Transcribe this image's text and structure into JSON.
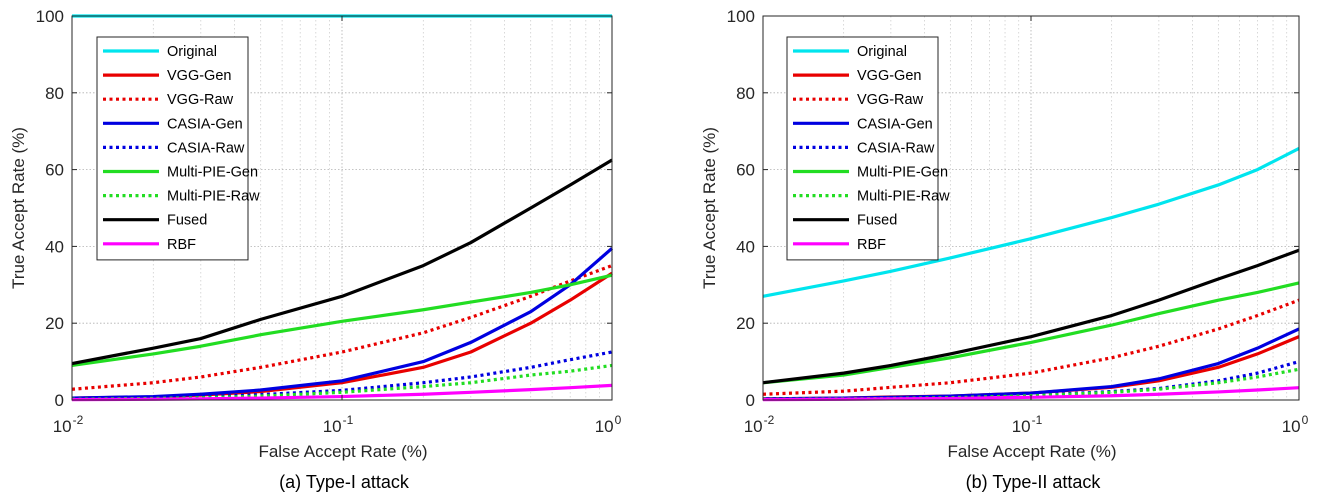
{
  "chart_data": [
    {
      "type": "line",
      "caption": "(a) Type-I attack",
      "xlabel": "False Accept Rate (%)",
      "ylabel": "True Accept Rate (%)",
      "xscale": "log",
      "xlim": [
        0.01,
        1
      ],
      "ylim": [
        0,
        100
      ],
      "xticks": [
        {
          "base": "10",
          "exp": "-2"
        },
        {
          "base": "10",
          "exp": "-1"
        },
        {
          "base": "10",
          "exp": "0"
        }
      ],
      "yticks": [
        "0",
        "20",
        "40",
        "60",
        "80",
        "100"
      ],
      "grid": true,
      "legend_position": "top-left",
      "x": [
        0.01,
        0.02,
        0.03,
        0.05,
        0.1,
        0.2,
        0.3,
        0.5,
        0.7,
        1.0
      ],
      "series": [
        {
          "name": "Original",
          "color": "#00e5ee",
          "dash": "solid",
          "values": [
            100,
            100,
            100,
            100,
            100,
            100,
            100,
            100,
            100,
            100
          ]
        },
        {
          "name": "VGG-Gen",
          "color": "#e80000",
          "dash": "solid",
          "values": [
            0.5,
            0.8,
            1.3,
            2.2,
            4.5,
            8.5,
            12.5,
            20,
            26,
            33
          ]
        },
        {
          "name": "VGG-Raw",
          "color": "#e80000",
          "dash": "dot",
          "values": [
            2.8,
            4.5,
            6,
            8.5,
            12.5,
            17.5,
            21.5,
            27,
            31,
            35
          ]
        },
        {
          "name": "CASIA-Gen",
          "color": "#0000e0",
          "dash": "solid",
          "values": [
            0.5,
            0.9,
            1.5,
            2.6,
            5,
            10,
            15,
            23,
            30,
            39.5
          ]
        },
        {
          "name": "CASIA-Raw",
          "color": "#0000e0",
          "dash": "dot",
          "values": [
            0.3,
            0.5,
            0.8,
            1.4,
            2.5,
            4.5,
            6,
            8.5,
            10.5,
            12.5
          ]
        },
        {
          "name": "Multi-PIE-Gen",
          "color": "#22dd22",
          "dash": "solid",
          "values": [
            9,
            12,
            14,
            17,
            20.5,
            23.5,
            25.5,
            28,
            30,
            32.5
          ]
        },
        {
          "name": "Multi-PIE-Raw",
          "color": "#22dd22",
          "dash": "dot",
          "values": [
            0.2,
            0.4,
            0.6,
            1,
            2,
            3.5,
            4.5,
            6.5,
            7.5,
            9
          ]
        },
        {
          "name": "Fused",
          "color": "#000000",
          "dash": "solid",
          "values": [
            9.5,
            13.5,
            16,
            21,
            27,
            35,
            41,
            50,
            56,
            62.5
          ]
        },
        {
          "name": "RBF",
          "color": "#ff00ff",
          "dash": "solid",
          "values": [
            0.1,
            0.2,
            0.3,
            0.5,
            0.9,
            1.5,
            2,
            2.7,
            3.2,
            3.8
          ]
        }
      ]
    },
    {
      "type": "line",
      "caption": "(b) Type-II attack",
      "xlabel": "False Accept Rate (%)",
      "ylabel": "True Accept Rate (%)",
      "xscale": "log",
      "xlim": [
        0.01,
        1
      ],
      "ylim": [
        0,
        100
      ],
      "xticks": [
        {
          "base": "10",
          "exp": "-2"
        },
        {
          "base": "10",
          "exp": "-1"
        },
        {
          "base": "10",
          "exp": "0"
        }
      ],
      "yticks": [
        "0",
        "20",
        "40",
        "60",
        "80",
        "100"
      ],
      "grid": true,
      "legend_position": "top-left",
      "x": [
        0.01,
        0.02,
        0.03,
        0.05,
        0.1,
        0.2,
        0.3,
        0.5,
        0.7,
        1.0
      ],
      "series": [
        {
          "name": "Original",
          "color": "#00e5ee",
          "dash": "solid",
          "values": [
            27,
            31,
            33.5,
            37,
            42,
            47.5,
            51,
            56,
            60,
            65.5
          ]
        },
        {
          "name": "VGG-Gen",
          "color": "#e80000",
          "dash": "solid",
          "values": [
            0.3,
            0.5,
            0.8,
            1,
            1.8,
            3.3,
            5,
            8.5,
            12,
            16.5
          ]
        },
        {
          "name": "VGG-Raw",
          "color": "#e80000",
          "dash": "dot",
          "values": [
            1.5,
            2.3,
            3.3,
            4.5,
            7,
            11,
            14,
            18.5,
            22,
            26
          ]
        },
        {
          "name": "CASIA-Gen",
          "color": "#0000e0",
          "dash": "solid",
          "values": [
            0.3,
            0.5,
            0.7,
            1,
            1.8,
            3.5,
            5.5,
            9.5,
            13.5,
            18.5
          ]
        },
        {
          "name": "CASIA-Raw",
          "color": "#0000e0",
          "dash": "dot",
          "values": [
            0.2,
            0.3,
            0.4,
            0.6,
            1.2,
            2.2,
            3,
            5,
            7,
            10
          ]
        },
        {
          "name": "Multi-PIE-Gen",
          "color": "#22dd22",
          "dash": "solid",
          "values": [
            4.5,
            6.5,
            8.5,
            11,
            15,
            19.5,
            22.5,
            26,
            28,
            30.5
          ]
        },
        {
          "name": "Multi-PIE-Raw",
          "color": "#22dd22",
          "dash": "dot",
          "values": [
            0.2,
            0.3,
            0.4,
            0.6,
            1.1,
            2,
            2.8,
            4.5,
            6,
            8
          ]
        },
        {
          "name": "Fused",
          "color": "#000000",
          "dash": "solid",
          "values": [
            4.5,
            7,
            9,
            12,
            16.5,
            22,
            26,
            31.5,
            35,
            39
          ]
        },
        {
          "name": "RBF",
          "color": "#ff00ff",
          "dash": "solid",
          "values": [
            0.1,
            0.2,
            0.3,
            0.4,
            0.7,
            1.1,
            1.5,
            2.1,
            2.6,
            3.2
          ]
        }
      ]
    }
  ]
}
